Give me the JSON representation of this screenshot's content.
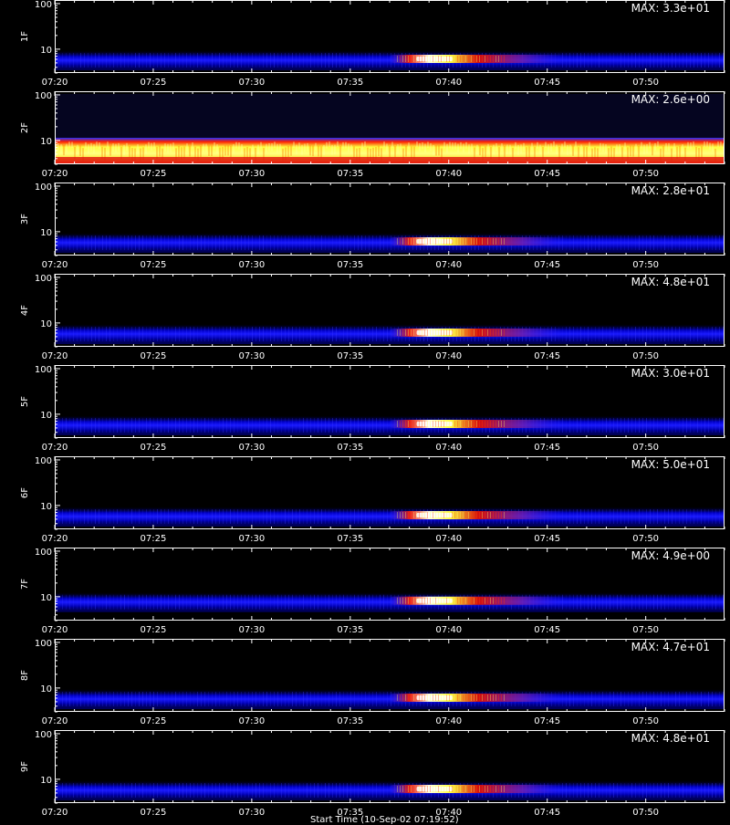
{
  "chart_data": {
    "type": "heatmap",
    "x_ticks": [
      "07:20",
      "07:25",
      "07:30",
      "07:35",
      "07:40",
      "07:45",
      "07:50"
    ],
    "x_range": [
      "07:20",
      "07:54"
    ],
    "y_scale": "log",
    "y_ticks": [
      "10",
      "100"
    ],
    "y_range": [
      3,
      120
    ],
    "panels": [
      {
        "label": "1F",
        "max_label": "MAX: 3.3e+01",
        "pattern": "flare",
        "band_center": 6,
        "hot_start": "07:37",
        "hot_peak": "07:39",
        "hot_end": "07:46"
      },
      {
        "label": "2F",
        "max_label": "MAX: 2.6e+00",
        "pattern": "saturated",
        "band_center": 6,
        "hot_start": "07:20",
        "hot_peak": "07:40",
        "hot_end": "07:54"
      },
      {
        "label": "3F",
        "max_label": "MAX: 2.8e+01",
        "pattern": "flare",
        "band_center": 6,
        "hot_start": "07:37",
        "hot_peak": "07:39",
        "hot_end": "07:46"
      },
      {
        "label": "4F",
        "max_label": "MAX: 4.8e+01",
        "pattern": "flare",
        "band_center": 6,
        "hot_start": "07:37",
        "hot_peak": "07:39",
        "hot_end": "07:46"
      },
      {
        "label": "5F",
        "max_label": "MAX: 3.0e+01",
        "pattern": "flare",
        "band_center": 6,
        "hot_start": "07:37",
        "hot_peak": "07:39",
        "hot_end": "07:46"
      },
      {
        "label": "6F",
        "max_label": "MAX: 5.0e+01",
        "pattern": "flare",
        "band_center": 6,
        "hot_start": "07:37",
        "hot_peak": "07:39",
        "hot_end": "07:46"
      },
      {
        "label": "7F",
        "max_label": "MAX: 4.9e+00",
        "pattern": "flare",
        "band_center": 8,
        "hot_start": "07:37",
        "hot_peak": "07:39",
        "hot_end": "07:46"
      },
      {
        "label": "8F",
        "max_label": "MAX: 4.7e+01",
        "pattern": "flare",
        "band_center": 6,
        "hot_start": "07:37",
        "hot_peak": "07:39",
        "hot_end": "07:46"
      },
      {
        "label": "9F",
        "max_label": "MAX: 4.8e+01",
        "pattern": "flare",
        "band_center": 6,
        "hot_start": "07:37",
        "hot_peak": "07:39",
        "hot_end": "07:46"
      }
    ],
    "x_title": "Start Time (10-Sep-02 07:19:52)",
    "colors": {
      "background": "#000000",
      "axes": "#ffffff",
      "low": "#0000c8",
      "mid": "#cc0000",
      "high": "#ffff60",
      "peak": "#ffffff"
    }
  }
}
